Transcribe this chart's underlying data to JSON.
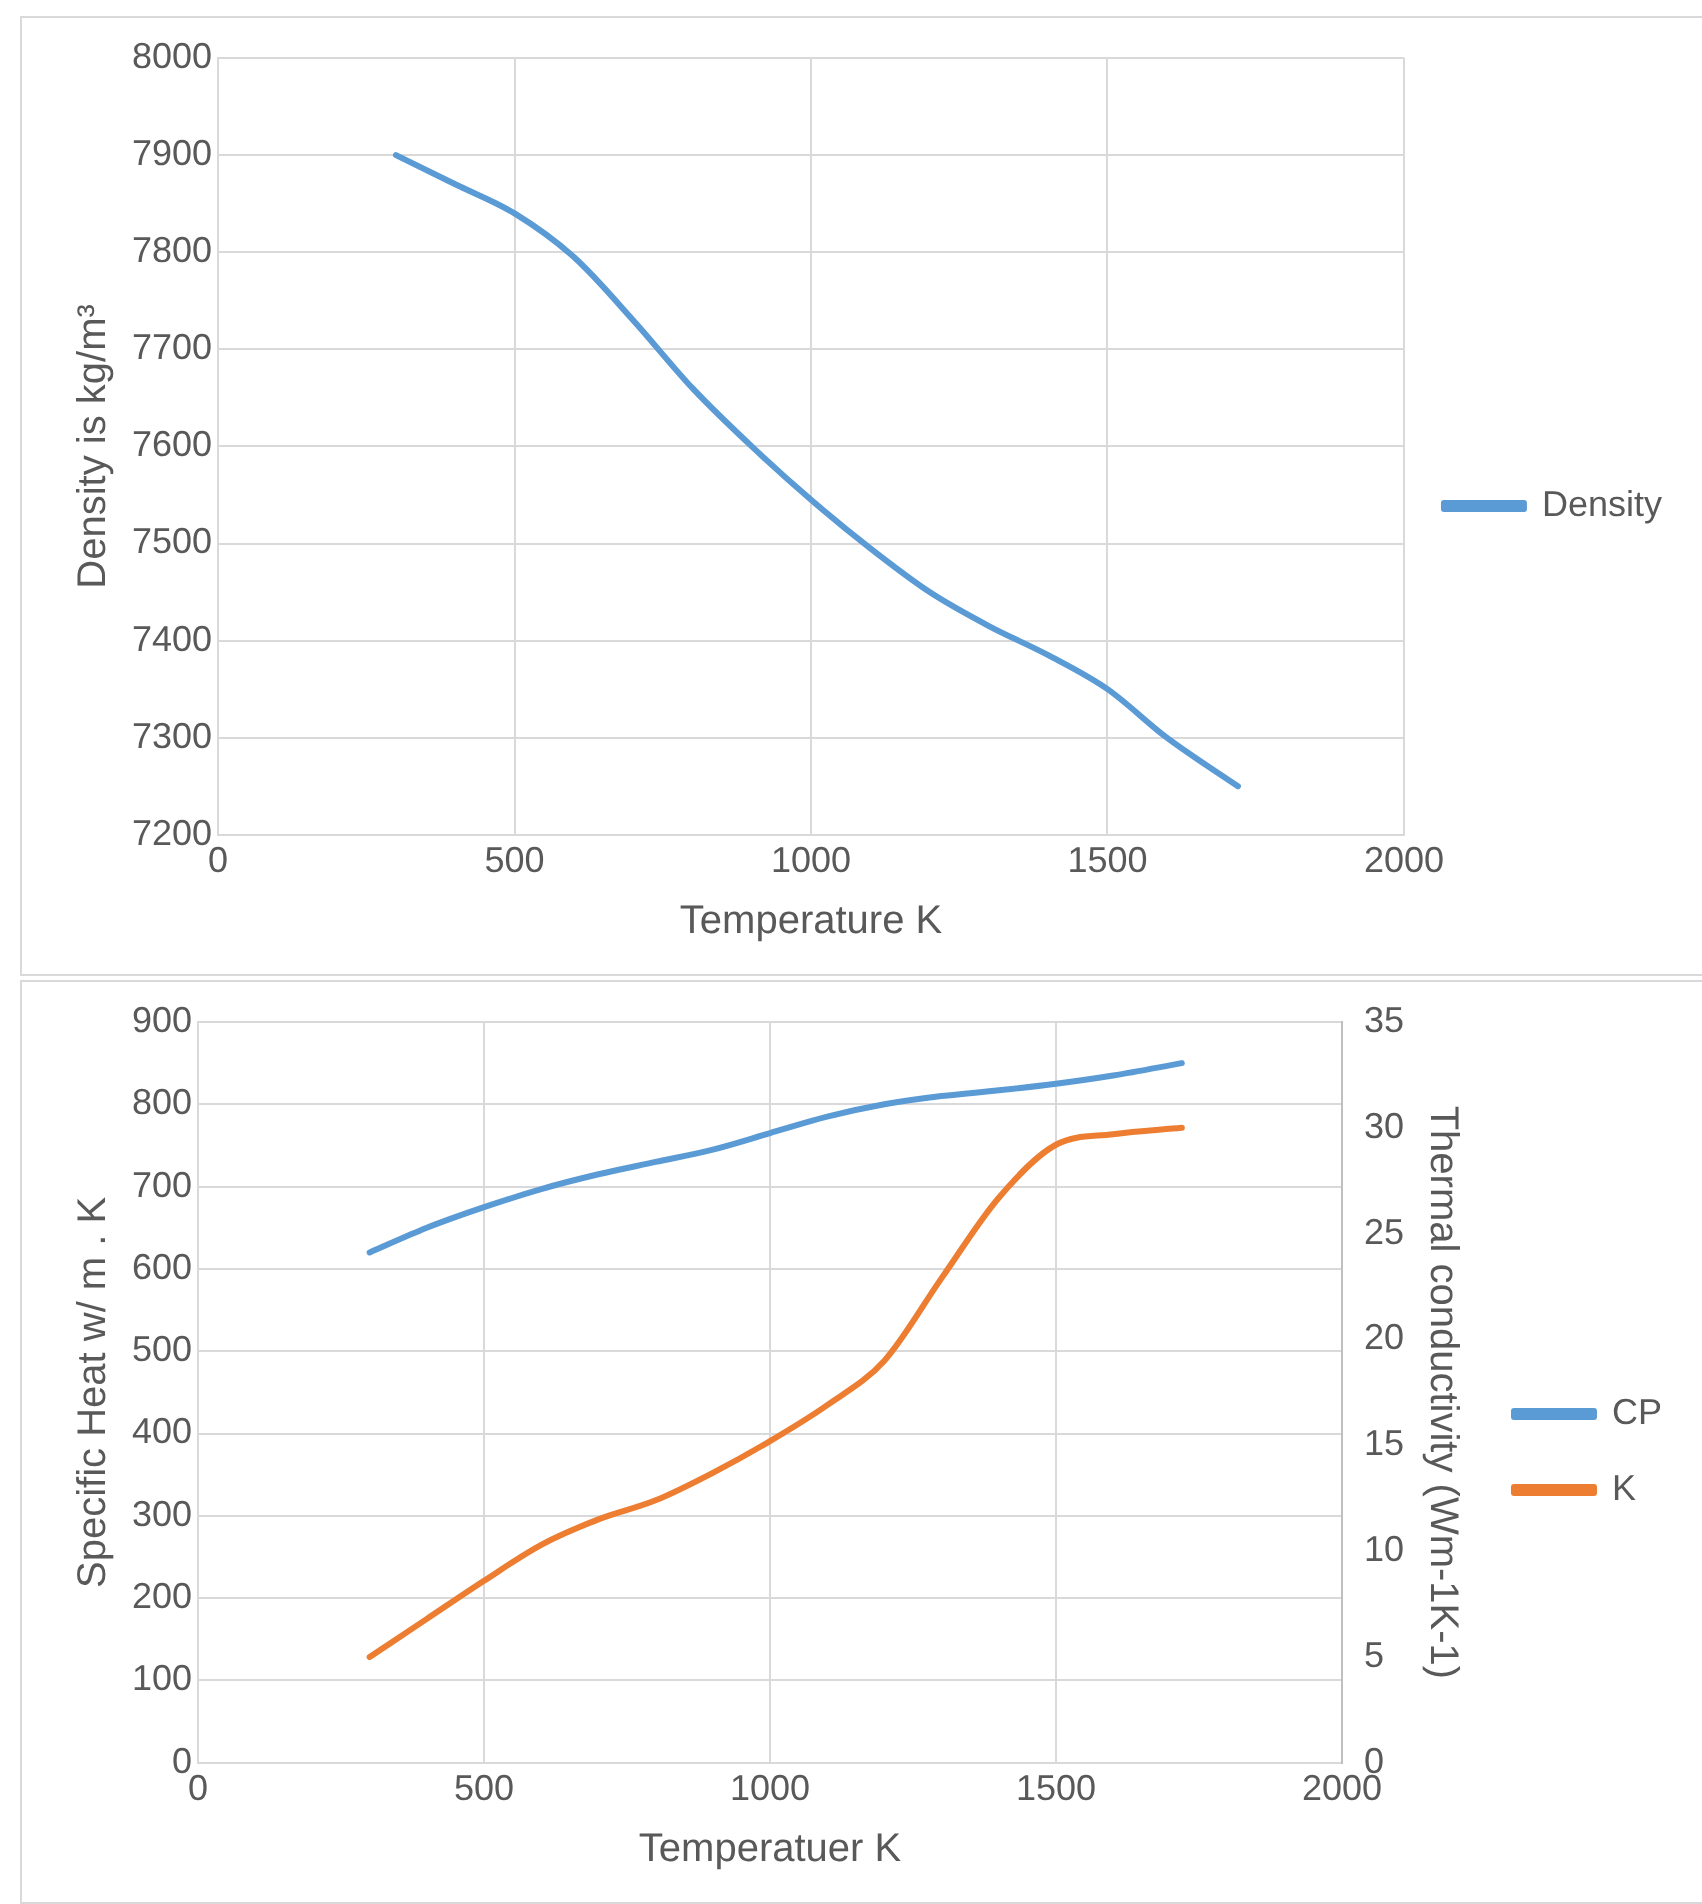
{
  "chart_data": [
    {
      "type": "line",
      "xlabel": "Temperature K",
      "ylabel": "Density is kg/m³",
      "x": [
        300,
        400,
        500,
        600,
        700,
        800,
        900,
        1000,
        1100,
        1200,
        1300,
        1400,
        1500,
        1600,
        1720
      ],
      "series": [
        {
          "name": "Density",
          "color": "#5b9bd5",
          "values": [
            7900,
            7870,
            7840,
            7795,
            7730,
            7660,
            7600,
            7545,
            7495,
            7450,
            7415,
            7385,
            7350,
            7300,
            7250
          ]
        }
      ],
      "xlim": [
        0,
        2000
      ],
      "xticks": [
        0,
        500,
        1000,
        1500,
        2000
      ],
      "ylim": [
        7200,
        8000
      ],
      "yticks": [
        7200,
        7300,
        7400,
        7500,
        7600,
        7700,
        7800,
        7900,
        8000
      ],
      "grid": true,
      "legend": "right",
      "marker": "none",
      "line_style": "solid"
    },
    {
      "type": "line",
      "xlabel": "Temperatuer K",
      "ylabel": "Specific Heat w/ m . K",
      "y2label": "Thermal conductivity (Wm-1K-1)",
      "x": [
        300,
        400,
        500,
        600,
        700,
        800,
        900,
        1000,
        1100,
        1200,
        1300,
        1400,
        1500,
        1600,
        1720
      ],
      "series": [
        {
          "name": "CP",
          "color": "#5b9bd5",
          "values": [
            620,
            650,
            675,
            697,
            715,
            730,
            745,
            765,
            785,
            800,
            810,
            817,
            825,
            835,
            850
          ]
        },
        {
          "name": "K",
          "color": "#ed7d31",
          "axis": "y2",
          "values": [
            5,
            6.8,
            8.6,
            10.3,
            11.5,
            12.4,
            13.7,
            15.2,
            16.9,
            19,
            22.9,
            26.7,
            29.2,
            29.7,
            30
          ]
        }
      ],
      "xlim": [
        0,
        2000
      ],
      "xticks": [
        0,
        500,
        1000,
        1500,
        2000
      ],
      "ylim": [
        0,
        900
      ],
      "yticks": [
        0,
        100,
        200,
        300,
        400,
        500,
        600,
        700,
        800,
        900
      ],
      "y2lim": [
        0,
        35
      ],
      "y2ticks": [
        0,
        5,
        10,
        15,
        20,
        25,
        30,
        35
      ],
      "grid": true,
      "legend": "right",
      "marker": "none",
      "line_style": "solid"
    }
  ]
}
